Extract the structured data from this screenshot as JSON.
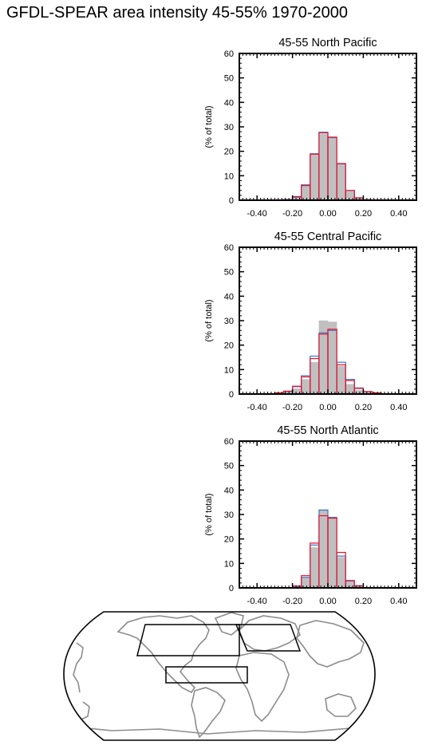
{
  "title": "GFDL-SPEAR area intensity 45-55% 1970-2000",
  "colors": {
    "gray": "#c0c0c0",
    "blue": "#3b78c9",
    "red": "#e8112d",
    "coast": "#8c8c8c"
  },
  "chart_data": [
    {
      "type": "bar",
      "title": "45-55 North Pacific",
      "ylabel": "(% of total)",
      "xlim": [
        -0.5,
        0.5
      ],
      "ylim": [
        0,
        60
      ],
      "xticks": [
        "-0.40",
        "-0.20",
        "0.00",
        "0.20",
        "0.40"
      ],
      "yticks": [
        "0",
        "10",
        "20",
        "30",
        "40",
        "50",
        "60"
      ],
      "bin_width": 0.05,
      "bins": [
        -0.3,
        -0.25,
        -0.2,
        -0.15,
        -0.1,
        -0.05,
        0.0,
        0.05,
        0.1,
        0.15,
        0.2,
        0.25
      ],
      "series": [
        {
          "color": "gray",
          "values": [
            0.1,
            0.3,
            1.0,
            5.8,
            18.5,
            27.0,
            25.5,
            14.5,
            3.5,
            0.8,
            0.2,
            0.0
          ]
        },
        {
          "color": "blue",
          "values": [
            0.1,
            0.3,
            1.2,
            6.3,
            19.0,
            27.8,
            25.6,
            14.8,
            3.9,
            0.9,
            0.2,
            0.0
          ]
        },
        {
          "color": "red",
          "values": [
            0.1,
            0.2,
            1.5,
            6.0,
            18.8,
            27.5,
            25.8,
            15.0,
            4.0,
            1.0,
            0.2,
            0.0
          ]
        }
      ]
    },
    {
      "type": "bar",
      "title": "45-55 Central Pacific",
      "ylabel": "(% of total)",
      "xlim": [
        -0.5,
        0.5
      ],
      "ylim": [
        0,
        60
      ],
      "xticks": [
        "-0.40",
        "-0.20",
        "0.00",
        "0.20",
        "0.40"
      ],
      "yticks": [
        "0",
        "10",
        "20",
        "30",
        "40",
        "50",
        "60"
      ],
      "bin_width": 0.05,
      "bins": [
        -0.35,
        -0.3,
        -0.25,
        -0.2,
        -0.15,
        -0.1,
        -0.05,
        0.0,
        0.05,
        0.1,
        0.15,
        0.2,
        0.25,
        0.3
      ],
      "series": [
        {
          "color": "gray",
          "values": [
            0.1,
            0.3,
            0.7,
            2.2,
            6.0,
            13.0,
            30.0,
            29.5,
            11.5,
            4.0,
            1.5,
            0.8,
            0.4,
            0.1
          ]
        },
        {
          "color": "blue",
          "values": [
            0.1,
            0.4,
            1.0,
            3.0,
            7.5,
            15.5,
            25.0,
            26.0,
            13.0,
            6.0,
            2.5,
            1.0,
            0.4,
            0.1
          ]
        },
        {
          "color": "red",
          "values": [
            0.1,
            0.5,
            1.2,
            3.2,
            7.0,
            14.5,
            24.5,
            26.5,
            12.0,
            5.5,
            2.3,
            1.0,
            0.5,
            0.1
          ]
        }
      ]
    },
    {
      "type": "bar",
      "title": "45-55 North Atlantic",
      "ylabel": "(% of total)",
      "xlim": [
        -0.5,
        0.5
      ],
      "ylim": [
        0,
        60
      ],
      "xticks": [
        "-0.40",
        "-0.20",
        "0.00",
        "0.20",
        "0.40"
      ],
      "yticks": [
        "0",
        "10",
        "20",
        "30",
        "40",
        "50",
        "60"
      ],
      "bin_width": 0.05,
      "bins": [
        -0.25,
        -0.2,
        -0.15,
        -0.1,
        -0.05,
        0.0,
        0.05,
        0.1,
        0.15,
        0.2
      ],
      "series": [
        {
          "color": "gray",
          "values": [
            0.1,
            0.6,
            4.3,
            16.5,
            32.0,
            29.0,
            12.5,
            2.5,
            0.8,
            0.1
          ]
        },
        {
          "color": "blue",
          "values": [
            0.1,
            0.6,
            4.3,
            17.5,
            31.8,
            28.8,
            13.0,
            2.8,
            0.9,
            0.1
          ]
        },
        {
          "color": "red",
          "values": [
            0.1,
            0.8,
            5.0,
            18.3,
            29.5,
            28.5,
            14.5,
            3.0,
            0.8,
            0.1
          ]
        }
      ]
    }
  ]
}
